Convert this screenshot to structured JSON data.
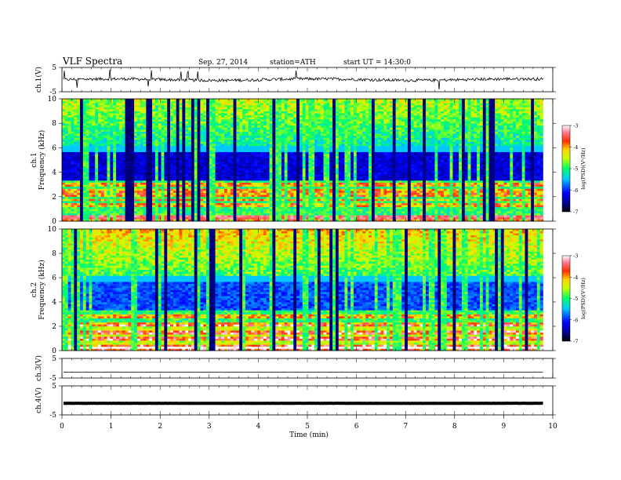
{
  "header": {
    "title": "VLF  Spectra",
    "date": "Sep. 27, 2014",
    "station": "station=ATH",
    "start": "start  UT  =   14:30:0"
  },
  "chart_data": [
    {
      "type": "line",
      "name": "waveform-ch1",
      "ylabel": "ch.1(V)",
      "ylim": [
        -5,
        5
      ],
      "yticks": [
        "5",
        "-5"
      ],
      "xlim": [
        0,
        10
      ],
      "trace_level": 0.0,
      "trace_noise": 1.0,
      "line_color": "#000000"
    },
    {
      "type": "heatmap",
      "name": "spectrogram-ch1",
      "ylabel": "ch.1\nFrequency (kHz)",
      "ylim": [
        0,
        10
      ],
      "yticks": [
        "0",
        "2",
        "4",
        "6",
        "8",
        "10"
      ],
      "xlim": [
        0,
        10
      ],
      "data_end_min": 9.8,
      "colorbar": {
        "label": "log(PSD)(V²/Hz)",
        "ticks": [
          "-3",
          "-4",
          "-5",
          "-6",
          "-7"
        ],
        "range": [
          -7,
          -3
        ]
      }
    },
    {
      "type": "heatmap",
      "name": "spectrogram-ch2",
      "ylabel": "ch.2\nFrequency (kHz)",
      "ylim": [
        0,
        10
      ],
      "yticks": [
        "0",
        "2",
        "4",
        "6",
        "8",
        "10"
      ],
      "xlim": [
        0,
        10
      ],
      "data_end_min": 9.8,
      "colorbar": {
        "label": "log(PSD)(V²/Hz)",
        "ticks": [
          "-3",
          "-4",
          "-5",
          "-6",
          "-7"
        ],
        "range": [
          -7,
          -3
        ]
      }
    },
    {
      "type": "line",
      "name": "waveform-ch3",
      "ylabel": "ch.3(V)",
      "ylim": [
        -5,
        5
      ],
      "yticks": [
        "5",
        "-5"
      ],
      "xlim": [
        0,
        10
      ],
      "trace_level": -2.0,
      "trace_noise": 0.1,
      "line_color": "#000000"
    },
    {
      "type": "line",
      "name": "waveform-ch4",
      "ylabel": "ch.4(V)",
      "ylim": [
        -5,
        5
      ],
      "yticks": [
        "5",
        "-5"
      ],
      "xlim": [
        0,
        10
      ],
      "trace_level": -1.0,
      "trace_noise": 0.05,
      "line_color": "#000000"
    }
  ],
  "xaxis": {
    "label": "Time  (min)",
    "ticks": [
      "0",
      "1",
      "2",
      "3",
      "4",
      "5",
      "6",
      "7",
      "8",
      "9",
      "10"
    ]
  }
}
